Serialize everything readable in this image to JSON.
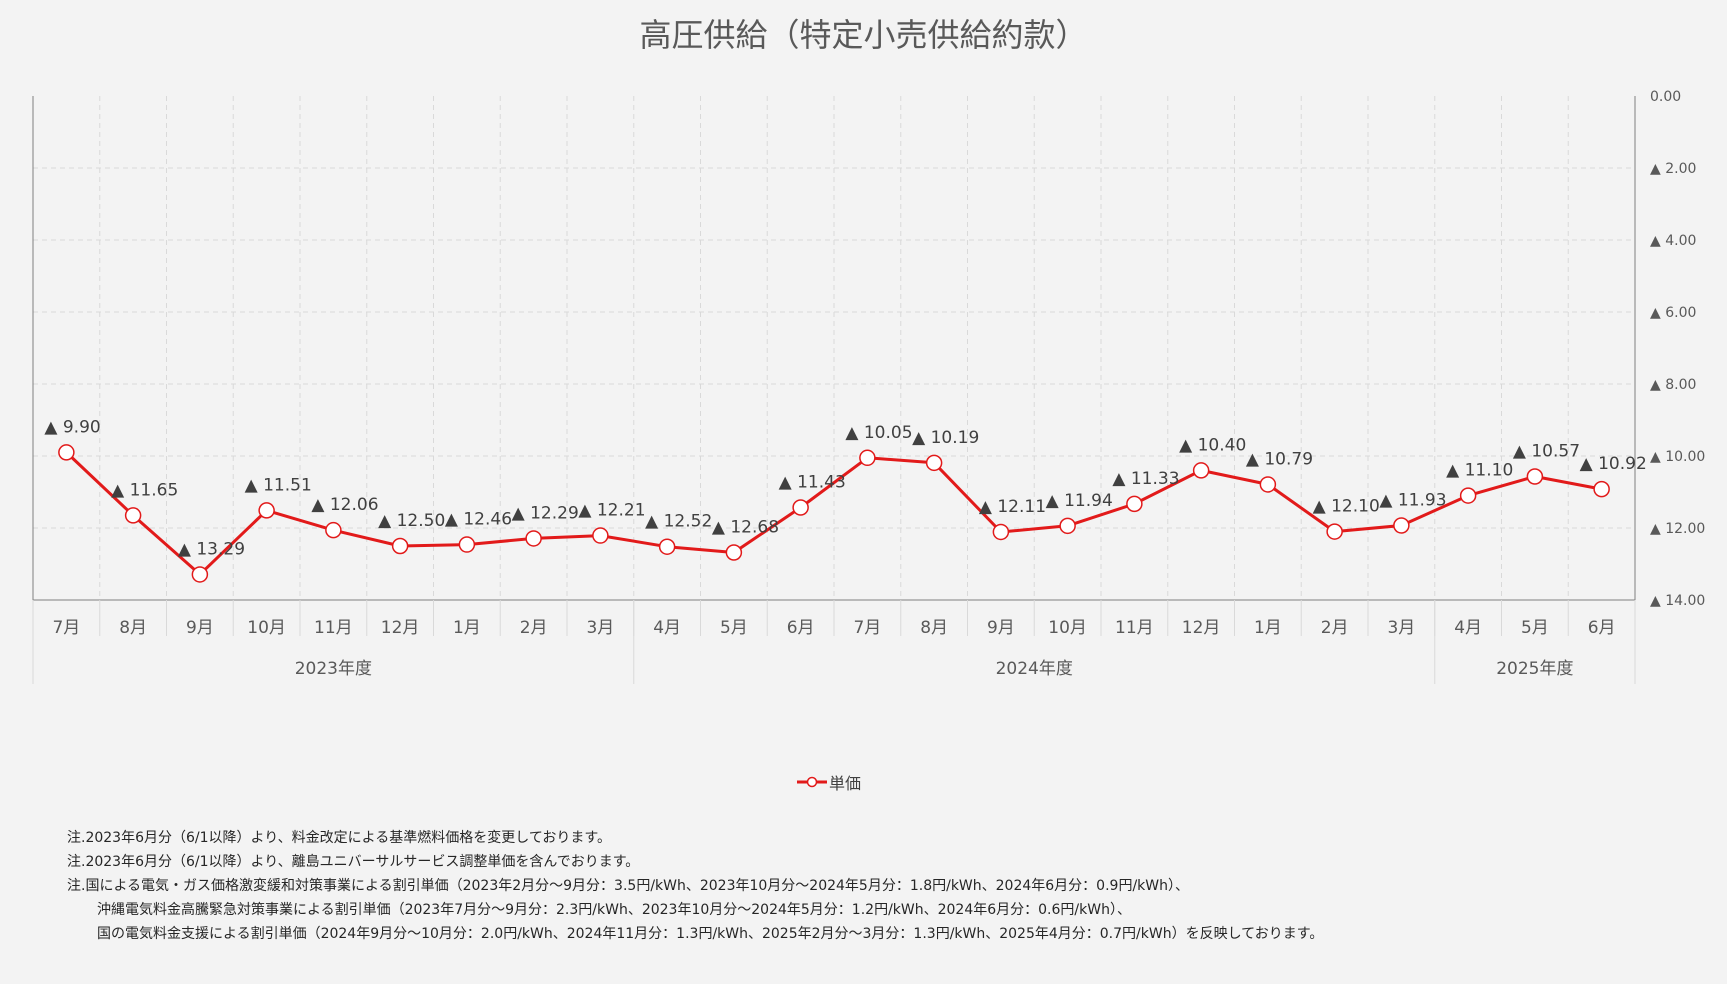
{
  "title": "高圧供給（特定小売供給約款）",
  "colors": {
    "series": "#e21a1a",
    "grid": "#d9d9d9",
    "axis": "#7f7f7f",
    "text": "#595959"
  },
  "chart_data": {
    "type": "line",
    "y_axis_position": "right",
    "y_inverted": true,
    "ylim": [
      0,
      14
    ],
    "y_ticks": [
      "0.00",
      "▲ 2.00",
      "▲ 4.00",
      "▲ 6.00",
      "▲ 8.00",
      "▲ 10.00",
      "▲ 12.00",
      "▲ 14.00"
    ],
    "y_tick_values": [
      0,
      2,
      4,
      6,
      8,
      10,
      12,
      14
    ],
    "categories": [
      "7月",
      "8月",
      "9月",
      "10月",
      "11月",
      "12月",
      "1月",
      "2月",
      "3月",
      "4月",
      "5月",
      "6月",
      "7月",
      "8月",
      "9月",
      "10月",
      "11月",
      "12月",
      "1月",
      "2月",
      "3月",
      "4月",
      "5月",
      "6月"
    ],
    "groups": [
      {
        "label": "2023年度",
        "count": 9
      },
      {
        "label": "2024年度",
        "count": 12
      },
      {
        "label": "2025年度",
        "count": 3
      }
    ],
    "series": [
      {
        "name": "単価",
        "values": [
          9.9,
          11.65,
          13.29,
          11.51,
          12.06,
          12.5,
          12.46,
          12.29,
          12.21,
          12.52,
          12.68,
          11.43,
          10.05,
          10.19,
          12.11,
          11.94,
          11.33,
          10.4,
          10.79,
          12.1,
          11.93,
          11.1,
          10.57,
          10.92
        ],
        "labels": [
          "▲ 9.90",
          "▲ 11.65",
          "▲ 13.29",
          "▲ 11.51",
          "▲ 12.06",
          "▲ 12.50",
          "▲ 12.46",
          "▲ 12.29",
          "▲ 12.21",
          "▲ 12.52",
          "▲ 12.68",
          "▲ 11.43",
          "▲ 10.05",
          "▲ 10.19",
          "▲ 12.11",
          "▲ 11.94",
          "▲ 11.33",
          "▲ 10.40",
          "▲ 10.79",
          "▲ 12.10",
          "▲ 11.93",
          "▲ 11.10",
          "▲ 10.57",
          "▲ 10.92"
        ]
      }
    ],
    "grid": true,
    "legend": "bottom"
  },
  "legend_label": "単価",
  "notes": [
    "注.2023年6月分（6/1以降）より、料金改定による基準燃料価格を変更しております。",
    "注.2023年6月分（6/1以降）より、離島ユニバーサルサービス調整単価を含んでおります。",
    "注.国による電気・ガス価格激変緩和対策事業による割引単価（2023年2月分～9月分：3.5円/kWh、2023年10月分～2024年5月分：1.8円/kWh、2024年6月分：0.9円/kWh）、",
    "沖縄電気料金高騰緊急対策事業による割引単価（2023年7月分～9月分：2.3円/kWh、2023年10月分～2024年5月分：1.2円/kWh、2024年6月分：0.6円/kWh）、",
    "国の電気料金支援による割引単価（2024年9月分～10月分：2.0円/kWh、2024年11月分：1.3円/kWh、2025年2月分～3月分：1.3円/kWh、2025年4月分：0.7円/kWh）を反映しております。"
  ]
}
